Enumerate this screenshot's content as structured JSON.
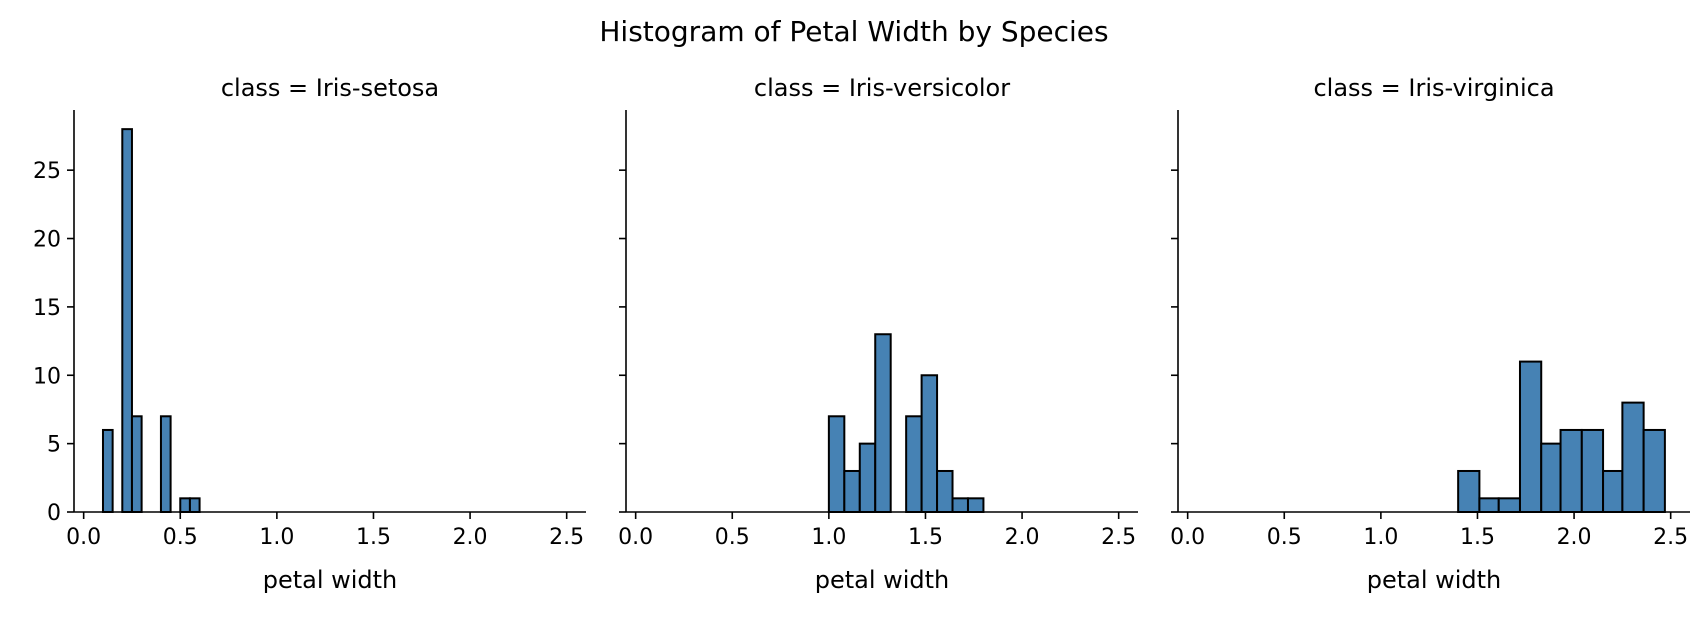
{
  "chart_title": "Histogram of Petal Width by Species",
  "style": {
    "bar_color": "#4682b4",
    "edge_color": "#000000"
  },
  "chart_data": [
    {
      "type": "bar",
      "title": "class = Iris-setosa",
      "xlabel": "petal width",
      "ylabel": "",
      "xlim": [
        -0.05,
        2.6
      ],
      "ylim": [
        0,
        29.4
      ],
      "xticks": [
        "0.0",
        "0.5",
        "1.0",
        "1.5",
        "2.0",
        "2.5"
      ],
      "yticks": [
        "0",
        "5",
        "10",
        "15",
        "20",
        "25"
      ],
      "bin_width": 0.05,
      "bins": [
        {
          "x0": 0.1,
          "x1": 0.15,
          "count": 6
        },
        {
          "x0": 0.2,
          "x1": 0.25,
          "count": 28
        },
        {
          "x0": 0.25,
          "x1": 0.3,
          "count": 7
        },
        {
          "x0": 0.4,
          "x1": 0.45,
          "count": 7
        },
        {
          "x0": 0.5,
          "x1": 0.55,
          "count": 1
        },
        {
          "x0": 0.55,
          "x1": 0.6,
          "count": 1
        }
      ]
    },
    {
      "type": "bar",
      "title": "class = Iris-versicolor",
      "xlabel": "petal width",
      "ylabel": "",
      "xlim": [
        -0.05,
        2.6
      ],
      "ylim": [
        0,
        29.4
      ],
      "xticks": [
        "0.0",
        "0.5",
        "1.0",
        "1.5",
        "2.0",
        "2.5"
      ],
      "yticks": [
        "0",
        "5",
        "10",
        "15",
        "20",
        "25"
      ],
      "bins": [
        {
          "x0": 1.0,
          "x1": 1.08,
          "count": 7
        },
        {
          "x0": 1.08,
          "x1": 1.16,
          "count": 3
        },
        {
          "x0": 1.16,
          "x1": 1.24,
          "count": 5
        },
        {
          "x0": 1.24,
          "x1": 1.32,
          "count": 13
        },
        {
          "x0": 1.4,
          "x1": 1.48,
          "count": 7
        },
        {
          "x0": 1.48,
          "x1": 1.56,
          "count": 10
        },
        {
          "x0": 1.56,
          "x1": 1.64,
          "count": 3
        },
        {
          "x0": 1.64,
          "x1": 1.72,
          "count": 1
        },
        {
          "x0": 1.72,
          "x1": 1.8,
          "count": 1
        }
      ]
    },
    {
      "type": "bar",
      "title": "class = Iris-virginica",
      "xlabel": "petal width",
      "ylabel": "",
      "xlim": [
        -0.05,
        2.6
      ],
      "ylim": [
        0,
        29.4
      ],
      "xticks": [
        "0.0",
        "0.5",
        "1.0",
        "1.5",
        "2.0",
        "2.5"
      ],
      "yticks": [
        "0",
        "5",
        "10",
        "15",
        "20",
        "25"
      ],
      "bins": [
        {
          "x0": 1.4,
          "x1": 1.51,
          "count": 3
        },
        {
          "x0": 1.51,
          "x1": 1.61,
          "count": 1
        },
        {
          "x0": 1.61,
          "x1": 1.72,
          "count": 1
        },
        {
          "x0": 1.72,
          "x1": 1.83,
          "count": 11
        },
        {
          "x0": 1.83,
          "x1": 1.93,
          "count": 5
        },
        {
          "x0": 1.93,
          "x1": 2.04,
          "count": 6
        },
        {
          "x0": 2.04,
          "x1": 2.15,
          "count": 6
        },
        {
          "x0": 2.15,
          "x1": 2.25,
          "count": 3
        },
        {
          "x0": 2.25,
          "x1": 2.36,
          "count": 8
        },
        {
          "x0": 2.36,
          "x1": 2.47,
          "count": 6
        }
      ]
    }
  ]
}
